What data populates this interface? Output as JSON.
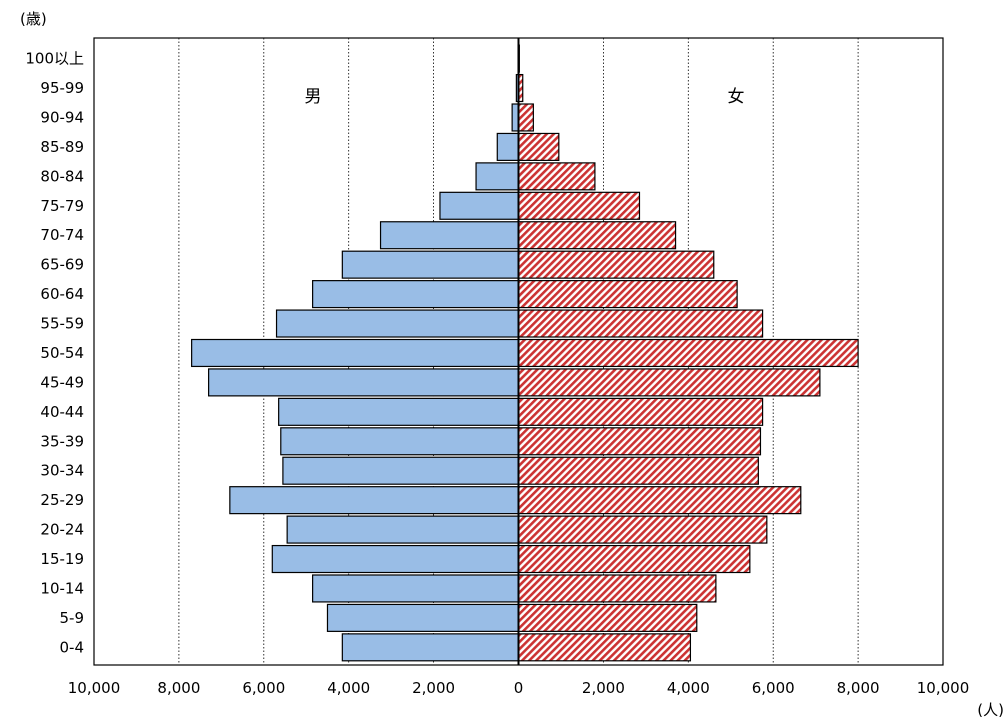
{
  "chart_data": {
    "type": "bar",
    "orientation": "horizontal",
    "subtype": "population-pyramid",
    "y_unit_label": "(歳)",
    "x_unit_label": "(人)",
    "categories": [
      "0-4",
      "5-9",
      "10-14",
      "15-19",
      "20-24",
      "25-29",
      "30-34",
      "35-39",
      "40-44",
      "45-49",
      "50-54",
      "55-59",
      "60-64",
      "65-69",
      "70-74",
      "75-79",
      "80-84",
      "85-89",
      "90-94",
      "95-99",
      "100以上"
    ],
    "series": [
      {
        "name": "男",
        "side": "left",
        "color": "#99bde6",
        "values": [
          4150,
          4500,
          4850,
          5800,
          5450,
          6800,
          5550,
          5600,
          5650,
          7300,
          7700,
          5700,
          4850,
          4150,
          3250,
          1850,
          1000,
          500,
          150,
          50,
          10
        ]
      },
      {
        "name": "女",
        "side": "right",
        "color": "#cc3333",
        "pattern": "diagonal-hatch",
        "values": [
          4050,
          4200,
          4650,
          5450,
          5850,
          6650,
          5650,
          5700,
          5750,
          7100,
          8000,
          5750,
          5150,
          4600,
          3700,
          2850,
          1800,
          950,
          350,
          100,
          20
        ]
      }
    ],
    "x_ticks": [
      "10,000",
      "8,000",
      "6,000",
      "4,000",
      "2,000",
      "0",
      "2,000",
      "4,000",
      "6,000",
      "8,000",
      "10,000"
    ],
    "xlim": [
      -10000,
      10000
    ],
    "grid": "vertical-dotted",
    "legend": "inline-labels"
  }
}
